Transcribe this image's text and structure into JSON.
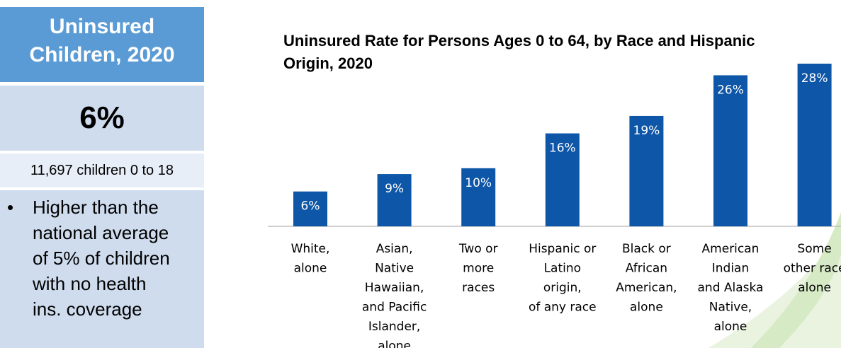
{
  "panel": {
    "title_line1": "Uninsured",
    "title_line2": "Children, 2020",
    "big_value": "6%",
    "count_text": "11,697 children 0 to 18",
    "bullet_lines": [
      "Higher than the",
      "national average",
      "of 5% of children",
      "with no health",
      "ins. coverage"
    ]
  },
  "colors": {
    "panel_header": "#5b9bd5",
    "panel_light": "#cfdcee",
    "bar": "#0e56a7"
  },
  "chart_data": {
    "type": "bar",
    "title_line1": "Uninsured Rate for Persons Ages 0 to 64, by Race and Hispanic",
    "title_line2": "Origin, 2020",
    "categories": [
      [
        "White,",
        "alone"
      ],
      [
        "Asian,",
        "Native",
        "Hawaiian,",
        "and Pacific",
        "Islander,",
        "alone"
      ],
      [
        "Two or",
        "more",
        "races"
      ],
      [
        "Hispanic or",
        "Latino",
        "origin,",
        "of any race"
      ],
      [
        "Black or",
        "African",
        "American,",
        "alone"
      ],
      [
        "American",
        "Indian",
        "and Alaska",
        "Native,",
        "alone"
      ],
      [
        "Some",
        "other race",
        "alone"
      ]
    ],
    "values": [
      6,
      9,
      10,
      16,
      19,
      26,
      28
    ],
    "labels": [
      "6%",
      "9%",
      "10%",
      "16%",
      "19%",
      "26%",
      "28%"
    ],
    "ylim": [
      0,
      28
    ],
    "grid": false,
    "legend": "none"
  }
}
